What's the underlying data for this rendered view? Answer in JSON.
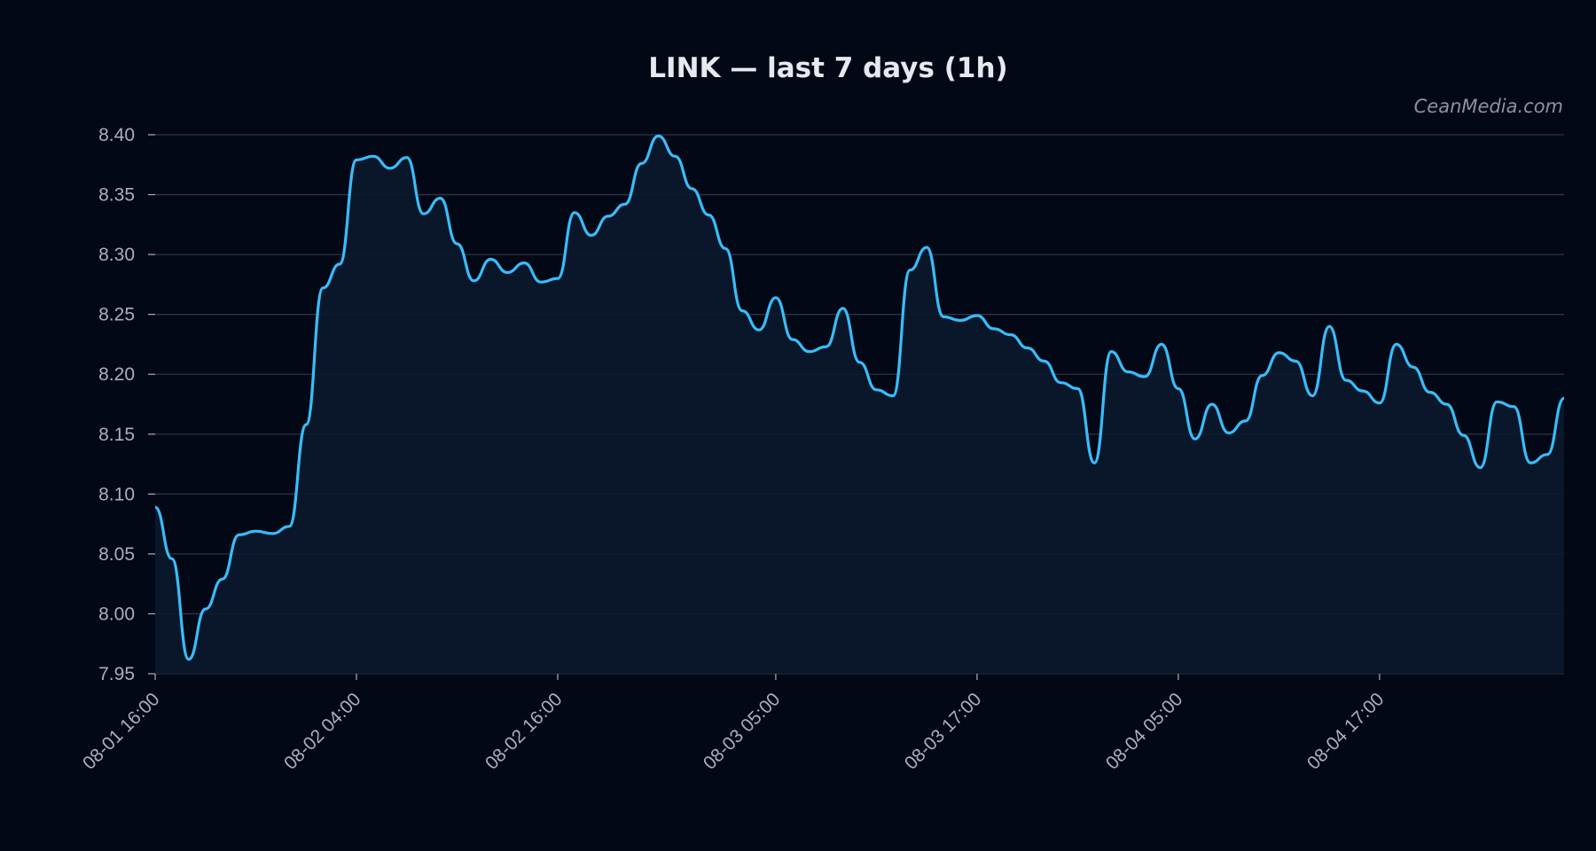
{
  "title": "LINK — last 7 days (1h)",
  "watermark": "CeanMedia.com",
  "colors": {
    "background": "#020816",
    "line": "#38bdf8",
    "area": "#0b1a2e",
    "grid": "#2c3444",
    "text": "#a9b0bd"
  },
  "chart_data": {
    "type": "area",
    "title": "LINK — last 7 days (1h)",
    "xlabel": "",
    "ylabel": "",
    "ylim": [
      7.95,
      8.4
    ],
    "y_ticks": [
      "7.95",
      "8.00",
      "8.05",
      "8.10",
      "8.15",
      "8.20",
      "8.25",
      "8.30",
      "8.35",
      "8.40"
    ],
    "x_ticks": [
      "08-01 16:00",
      "08-02 04:00",
      "08-02 16:00",
      "08-03 05:00",
      "08-03 17:00",
      "08-04 05:00",
      "08-04 17:00"
    ],
    "grid": true,
    "legend": "none",
    "series": [
      {
        "x": [
          "08-01 16:00",
          "08-01 17:00",
          "08-01 18:00",
          "08-01 19:00",
          "08-01 20:00",
          "08-01 21:00",
          "08-01 22:00",
          "08-01 23:00",
          "08-02 00:00",
          "08-02 01:00",
          "08-02 02:00",
          "08-02 03:00",
          "08-02 04:00",
          "08-02 05:00",
          "08-02 06:00",
          "08-02 07:00",
          "08-02 08:00",
          "08-02 09:00",
          "08-02 10:00",
          "08-02 11:00",
          "08-02 12:00",
          "08-02 13:00",
          "08-02 14:00",
          "08-02 15:00",
          "08-02 16:00",
          "08-02 17:00",
          "08-02 18:00",
          "08-02 19:00",
          "08-02 20:00",
          "08-02 21:00",
          "08-02 22:00",
          "08-02 23:00",
          "08-03 00:00",
          "08-03 01:00",
          "08-03 02:00",
          "08-03 03:00",
          "08-03 04:00",
          "08-03 05:00",
          "08-03 06:00",
          "08-03 07:00",
          "08-03 08:00",
          "08-03 09:00",
          "08-03 10:00",
          "08-03 11:00",
          "08-03 12:00",
          "08-03 13:00",
          "08-03 14:00",
          "08-03 15:00",
          "08-03 16:00",
          "08-03 17:00",
          "08-03 18:00",
          "08-03 19:00",
          "08-03 20:00",
          "08-03 21:00",
          "08-03 22:00",
          "08-03 23:00",
          "08-04 00:00",
          "08-04 01:00",
          "08-04 02:00",
          "08-04 03:00",
          "08-04 04:00",
          "08-04 05:00",
          "08-04 06:00",
          "08-04 07:00",
          "08-04 08:00",
          "08-04 09:00",
          "08-04 10:00",
          "08-04 11:00",
          "08-04 12:00",
          "08-04 13:00",
          "08-04 14:00",
          "08-04 15:00",
          "08-04 16:00",
          "08-04 17:00",
          "08-04 18:00",
          "08-04 19:00",
          "08-04 20:00",
          "08-04 21:00",
          "08-04 22:00",
          "08-04 23:00",
          "08-05 00:00",
          "08-05 01:00",
          "08-05 02:00",
          "08-05 03:00",
          "08-05 04:00"
        ],
        "values": [
          8.089,
          8.046,
          7.962,
          8.004,
          8.029,
          8.066,
          8.069,
          8.067,
          8.073,
          8.158,
          8.272,
          8.292,
          8.379,
          8.382,
          8.372,
          8.381,
          8.334,
          8.347,
          8.309,
          8.278,
          8.296,
          8.285,
          8.293,
          8.277,
          8.28,
          8.335,
          8.316,
          8.332,
          8.342,
          8.376,
          8.399,
          8.382,
          8.355,
          8.333,
          8.305,
          8.253,
          8.237,
          8.264,
          8.229,
          8.219,
          8.223,
          8.255,
          8.21,
          8.187,
          8.182,
          8.287,
          8.306,
          8.248,
          8.245,
          8.249,
          8.238,
          8.233,
          8.222,
          8.211,
          8.193,
          8.188,
          8.126,
          8.219,
          8.202,
          8.198,
          8.225,
          8.188,
          8.146,
          8.175,
          8.151,
          8.161,
          8.199,
          8.218,
          8.211,
          8.182,
          8.24,
          8.195,
          8.186,
          8.176,
          8.225,
          8.206,
          8.185,
          8.175,
          8.149,
          8.122,
          8.177,
          8.173,
          8.126,
          8.133,
          8.18
        ]
      }
    ]
  }
}
